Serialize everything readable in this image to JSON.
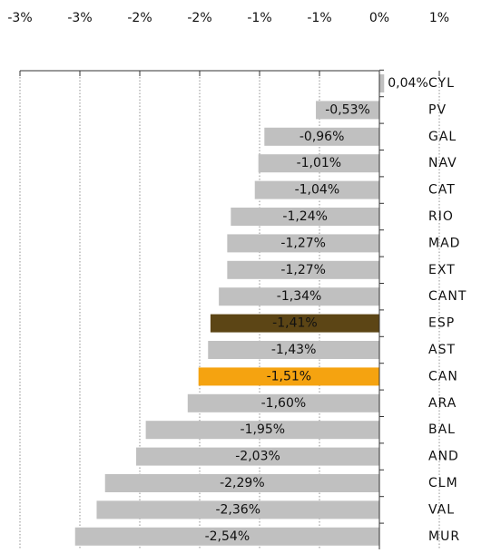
{
  "chart_data": {
    "type": "bar",
    "orientation": "horizontal",
    "categories": [
      "CYL",
      "PV",
      "GAL",
      "NAV",
      "CAT",
      "RIO",
      "MAD",
      "EXT",
      "CANT",
      "ESP",
      "AST",
      "CAN",
      "ARA",
      "BAL",
      "AND",
      "CLM",
      "VAL",
      "MUR"
    ],
    "values": [
      0.04,
      -0.53,
      -0.96,
      -1.01,
      -1.04,
      -1.24,
      -1.27,
      -1.27,
      -1.34,
      -1.41,
      -1.43,
      -1.51,
      -1.6,
      -1.95,
      -2.03,
      -2.29,
      -2.36,
      -2.54
    ],
    "value_labels": [
      "0,04%",
      "-0,53%",
      "-0,96%",
      "-1,01%",
      "-1,04%",
      "-1,24%",
      "-1,27%",
      "-1,27%",
      "-1,34%",
      "-1,41%",
      "-1,43%",
      "-1,51%",
      "-1,60%",
      "-1,95%",
      "-2,03%",
      "-2,29%",
      "-2,36%",
      "-2,54%"
    ],
    "colors": [
      "#c0c0c0",
      "#c0c0c0",
      "#c0c0c0",
      "#c0c0c0",
      "#c0c0c0",
      "#c0c0c0",
      "#c0c0c0",
      "#c0c0c0",
      "#c0c0c0",
      "#5c4515",
      "#c0c0c0",
      "#f5a310",
      "#c0c0c0",
      "#c0c0c0",
      "#c0c0c0",
      "#c0c0c0",
      "#c0c0c0",
      "#c0c0c0"
    ],
    "xlim": [
      -3,
      1
    ],
    "xticks": [
      {
        "value": -3,
        "label": "-3%"
      },
      {
        "value": -2.5,
        "label": "-3%"
      },
      {
        "value": -2,
        "label": "-2%"
      },
      {
        "value": -1.5,
        "label": "-2%"
      },
      {
        "value": -1,
        "label": "-1%"
      },
      {
        "value": -0.5,
        "label": "-1%"
      },
      {
        "value": 0,
        "label": "0%"
      },
      {
        "value": 0.5,
        "label": "1%"
      }
    ],
    "grid": true
  }
}
